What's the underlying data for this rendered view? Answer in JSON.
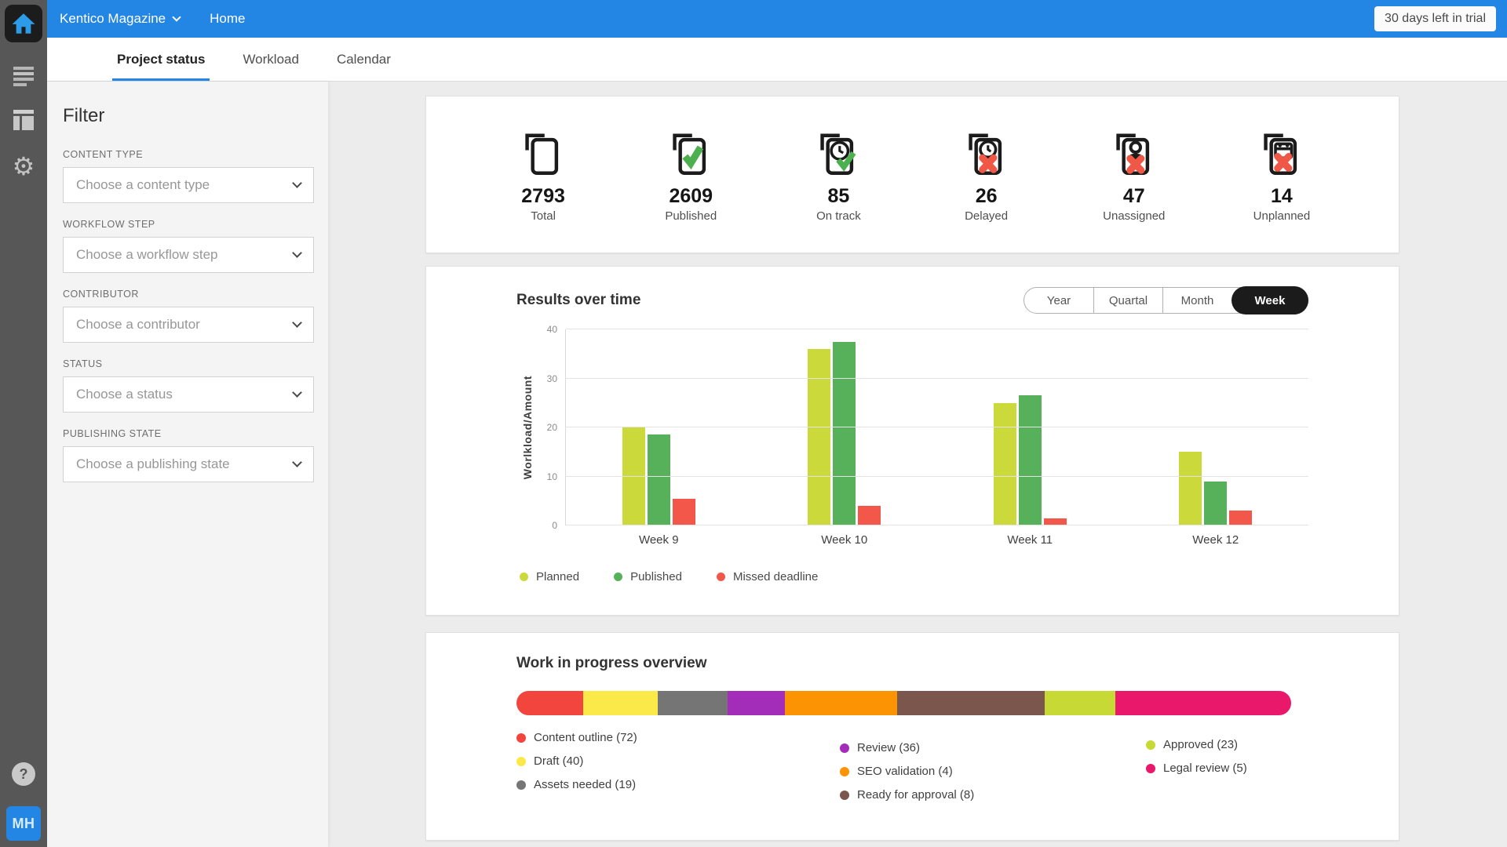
{
  "colors": {
    "accent_blue": "#2385e4",
    "toggle_active_bg": "#1b1b1b",
    "success_green": "#4cb04f",
    "error_red": "#ef5747"
  },
  "topbar": {
    "project_name": "Kentico Magazine",
    "nav_item": "Home",
    "trial_badge": "30 days left in trial"
  },
  "sidebar": {
    "help_label": "?",
    "avatar_initials": "MH"
  },
  "tabs": {
    "active": "Project status",
    "items": [
      {
        "label": "Project status"
      },
      {
        "label": "Workload"
      },
      {
        "label": "Calendar"
      }
    ]
  },
  "filter": {
    "title": "Filter",
    "groups": [
      {
        "label": "CONTENT TYPE",
        "placeholder": "Choose a content type"
      },
      {
        "label": "WORKFLOW STEP",
        "placeholder": "Choose a workflow step"
      },
      {
        "label": "CONTRIBUTOR",
        "placeholder": "Choose a contributor"
      },
      {
        "label": "STATUS",
        "placeholder": "Choose a status"
      },
      {
        "label": "PUBLISHING STATE",
        "placeholder": "Choose a publishing state"
      }
    ]
  },
  "stats": [
    {
      "value": "2793",
      "label": "Total",
      "icon": "pages-icon"
    },
    {
      "value": "2609",
      "label": "Published",
      "icon": "pages-check-icon"
    },
    {
      "value": "85",
      "label": "On track",
      "icon": "pages-clock-check-icon"
    },
    {
      "value": "26",
      "label": "Delayed",
      "icon": "pages-clock-cross-icon"
    },
    {
      "value": "47",
      "label": "Unassigned",
      "icon": "pages-person-cross-icon"
    },
    {
      "value": "14",
      "label": "Unplanned",
      "icon": "pages-calendar-cross-icon"
    }
  ],
  "results": {
    "title": "Results over time",
    "range_options": [
      "Year",
      "Quartal",
      "Month",
      "Week"
    ],
    "active_range": "Week"
  },
  "wip": {
    "title": "Work in progress overview",
    "legend_columns": [
      [
        0,
        1,
        2
      ],
      [
        3,
        4,
        5
      ],
      [
        6,
        7
      ]
    ]
  },
  "chart_data": [
    {
      "type": "bar",
      "title": "Results over time",
      "categories": [
        "Week 9",
        "Week 10",
        "Week 11",
        "Week 12"
      ],
      "series": [
        {
          "name": "Planned",
          "color": "#ccd93a",
          "values": [
            20,
            36,
            25,
            15
          ]
        },
        {
          "name": "Published",
          "color": "#57b15b",
          "values": [
            18.5,
            37.5,
            26.5,
            9
          ]
        },
        {
          "name": "Missed deadline",
          "color": "#f2574a",
          "values": [
            5.5,
            4,
            1.5,
            3
          ]
        }
      ],
      "xlabel": "",
      "ylabel": "Worlkload/Amount",
      "ylim": [
        0,
        40
      ],
      "yticks": [
        0,
        10,
        20,
        30,
        40
      ],
      "grid": true,
      "legend_position": "bottom"
    },
    {
      "type": "bar",
      "variant": "stacked-horizontal-progress",
      "title": "Work in progress overview",
      "segments": [
        {
          "label": "Content outline",
          "count": 72,
          "color": "#f2453d",
          "width_pct": 8.6
        },
        {
          "label": "Draft",
          "count": 40,
          "color": "#fbe94a",
          "width_pct": 9.6
        },
        {
          "label": "Assets needed",
          "count": 19,
          "color": "#757575",
          "width_pct": 9.1
        },
        {
          "label": "Review",
          "count": 36,
          "color": "#a32cb8",
          "width_pct": 7.4
        },
        {
          "label": "SEO validation",
          "count": 4,
          "color": "#fc9302",
          "width_pct": 14.4
        },
        {
          "label": "Ready for approval",
          "count": 8,
          "color": "#7b564c",
          "width_pct": 19.1
        },
        {
          "label": "Approved",
          "count": 23,
          "color": "#c7d934",
          "width_pct": 9.1
        },
        {
          "label": "Legal review",
          "count": 5,
          "color": "#e9186b",
          "width_pct": 22.7
        }
      ]
    }
  ]
}
